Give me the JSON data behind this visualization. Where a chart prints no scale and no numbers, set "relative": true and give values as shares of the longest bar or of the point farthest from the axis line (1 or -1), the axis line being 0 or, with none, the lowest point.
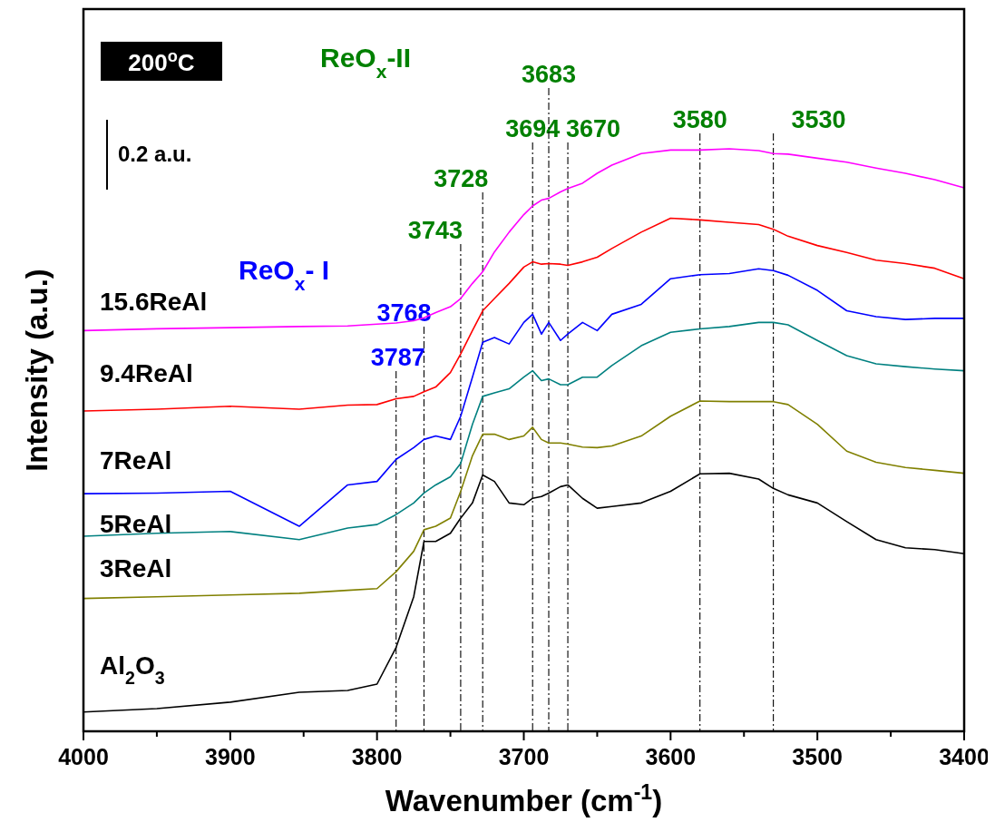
{
  "chart_data": {
    "type": "line",
    "relative": true,
    "xlabel": "Wavenumber (cm$^{-1}$)",
    "ylabel": "Intensity (a.u.)",
    "xlim": [
      4000,
      3400
    ],
    "xticks": [
      4000,
      {
        "value": 3950,
        "label": null
      },
      3900,
      {
        "value": 3850,
        "label": null
      },
      3800,
      {
        "value": 3750,
        "label": null
      },
      3700,
      {
        "value": 3650,
        "label": null
      },
      3600,
      {
        "value": 3550,
        "label": null
      },
      3500,
      {
        "value": 3450,
        "label": null
      },
      3400
    ],
    "x": [
      4000,
      3950,
      3900,
      3853,
      3820,
      3800,
      3787,
      3775,
      3768,
      3760,
      3750,
      3743,
      3735,
      3728,
      3720,
      3710,
      3700,
      3694,
      3688,
      3683,
      3675,
      3670,
      3660,
      3650,
      3640,
      3620,
      3600,
      3580,
      3560,
      3540,
      3530,
      3520,
      3500,
      3480,
      3460,
      3440,
      3420,
      3400
    ],
    "grid": false,
    "series": [
      {
        "name": "15.6ReAl",
        "color": "#ff00ff",
        "values": [
          0.688,
          0.691,
          0.693,
          0.695,
          0.696,
          0.699,
          0.701,
          0.705,
          0.71,
          0.719,
          0.729,
          0.743,
          0.769,
          0.789,
          0.823,
          0.857,
          0.887,
          0.902,
          0.912,
          0.915,
          0.926,
          0.932,
          0.941,
          0.958,
          0.972,
          0.992,
          0.998,
          0.998,
          1.0,
          0.997,
          0.992,
          0.991,
          0.984,
          0.977,
          0.967,
          0.958,
          0.947,
          0.933
        ]
      },
      {
        "name": "9.4ReAl",
        "color": "#ff0000",
        "values": [
          0.55,
          0.553,
          0.558,
          0.553,
          0.56,
          0.561,
          0.571,
          0.575,
          0.583,
          0.591,
          0.616,
          0.648,
          0.688,
          0.722,
          0.743,
          0.769,
          0.797,
          0.806,
          0.802,
          0.803,
          0.802,
          0.8,
          0.806,
          0.814,
          0.829,
          0.857,
          0.881,
          0.878,
          0.874,
          0.87,
          0.862,
          0.85,
          0.834,
          0.822,
          0.809,
          0.803,
          0.795,
          0.777
        ]
      },
      {
        "name": "7ReAl",
        "color": "#0000ff",
        "values": [
          0.408,
          0.409,
          0.412,
          0.352,
          0.423,
          0.429,
          0.467,
          0.487,
          0.501,
          0.507,
          0.501,
          0.541,
          0.608,
          0.668,
          0.676,
          0.665,
          0.702,
          0.716,
          0.682,
          0.702,
          0.671,
          0.682,
          0.702,
          0.688,
          0.716,
          0.733,
          0.777,
          0.784,
          0.786,
          0.794,
          0.791,
          0.783,
          0.757,
          0.722,
          0.712,
          0.707,
          0.709,
          0.709
        ]
      },
      {
        "name": "5ReAl",
        "color": "#008080",
        "values": [
          0.335,
          0.34,
          0.343,
          0.329,
          0.349,
          0.355,
          0.372,
          0.392,
          0.409,
          0.423,
          0.437,
          0.46,
          0.527,
          0.575,
          0.581,
          0.588,
          0.608,
          0.619,
          0.602,
          0.605,
          0.595,
          0.595,
          0.608,
          0.608,
          0.628,
          0.662,
          0.685,
          0.691,
          0.695,
          0.702,
          0.702,
          0.698,
          0.671,
          0.645,
          0.631,
          0.626,
          0.622,
          0.619
        ]
      },
      {
        "name": "3ReAl",
        "color": "#808000",
        "values": [
          0.228,
          0.231,
          0.234,
          0.237,
          0.242,
          0.245,
          0.274,
          0.309,
          0.346,
          0.352,
          0.366,
          0.412,
          0.473,
          0.51,
          0.51,
          0.501,
          0.507,
          0.522,
          0.501,
          0.495,
          0.495,
          0.493,
          0.488,
          0.487,
          0.49,
          0.507,
          0.541,
          0.567,
          0.566,
          0.566,
          0.566,
          0.561,
          0.527,
          0.481,
          0.462,
          0.453,
          0.448,
          0.443
        ]
      },
      {
        "name": "Al$_{2}$O$_{3}$",
        "color": "#000000",
        "values": [
          0.033,
          0.039,
          0.05,
          0.067,
          0.07,
          0.081,
          0.144,
          0.231,
          0.326,
          0.326,
          0.34,
          0.366,
          0.392,
          0.44,
          0.429,
          0.392,
          0.389,
          0.4,
          0.403,
          0.409,
          0.42,
          0.423,
          0.4,
          0.383,
          0.386,
          0.392,
          0.412,
          0.442,
          0.443,
          0.433,
          0.417,
          0.406,
          0.392,
          0.36,
          0.329,
          0.315,
          0.312,
          0.305
        ]
      }
    ],
    "ref_lines": [
      {
        "axis": "x",
        "value": 3787,
        "label": "3787",
        "line_style": "dashed"
      },
      {
        "axis": "x",
        "value": 3768,
        "label": "3768",
        "line_style": "dashed"
      },
      {
        "axis": "x",
        "value": 3743,
        "label": "3743",
        "line_style": "dashed"
      },
      {
        "axis": "x",
        "value": 3728,
        "label": "3728",
        "line_style": "dashed"
      },
      {
        "axis": "x",
        "value": 3694,
        "label": "3694",
        "line_style": "dashed"
      },
      {
        "axis": "x",
        "value": 3683,
        "label": "3683",
        "line_style": "dashed"
      },
      {
        "axis": "x",
        "value": 3670,
        "label": "3670",
        "line_style": "dashed"
      },
      {
        "axis": "x",
        "value": 3580,
        "label": "3580",
        "line_style": "dashed"
      },
      {
        "axis": "x",
        "value": 3530,
        "label": "3530",
        "line_style": "dashed"
      }
    ],
    "annotations": [
      "200$^{o}$C",
      "0.2 a.u.",
      "ReO$_{x}$- I",
      "ReO$_{x}$-II"
    ]
  }
}
